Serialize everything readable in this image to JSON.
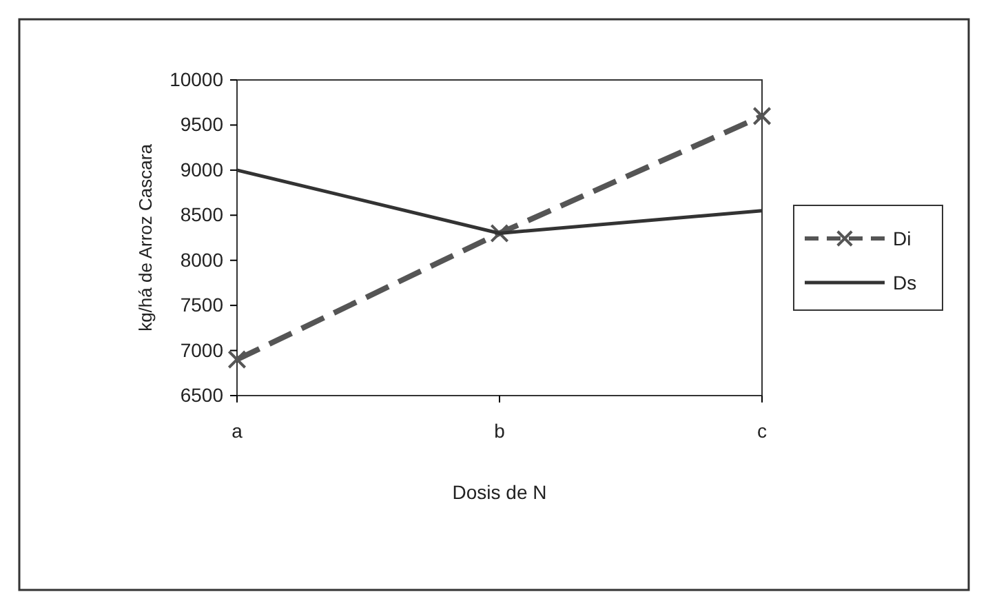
{
  "chart_data": {
    "type": "line",
    "xlabel": "Dosis de N",
    "ylabel": "kg/há de Arroz Cascara",
    "categories": [
      "a",
      "b",
      "c"
    ],
    "series": [
      {
        "name": "Di",
        "color": "#555555",
        "values": [
          6900,
          8300,
          9600
        ],
        "line_style": "dashed",
        "marker": "cross"
      },
      {
        "name": "Ds",
        "color": "#333333",
        "values": [
          9000,
          8300,
          8550
        ],
        "line_style": "solid",
        "marker": "none"
      }
    ],
    "ylim": [
      6500,
      10000
    ],
    "yticks": [
      6500,
      7000,
      7500,
      8000,
      8500,
      9000,
      9500,
      10000
    ],
    "grid": false,
    "legend": "right"
  }
}
